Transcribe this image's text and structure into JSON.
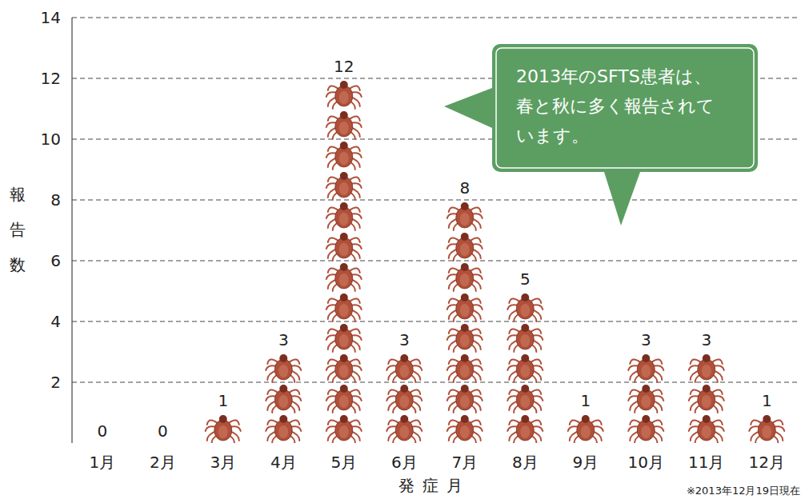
{
  "chart_data": {
    "type": "bar",
    "x_label": "発症月",
    "y_label": "報告数",
    "annotation": "2013年のSFTS患者は、春と秋に多く報告されています。",
    "footnote": "※2013年12月19日現在",
    "categories": [
      "1月",
      "2月",
      "3月",
      "4月",
      "5月",
      "6月",
      "7月",
      "8月",
      "9月",
      "10月",
      "11月",
      "12月"
    ],
    "values": [
      0,
      0,
      1,
      3,
      12,
      3,
      8,
      5,
      1,
      3,
      3,
      1
    ],
    "color": "#b0503a",
    "ylim": [
      0,
      14
    ],
    "yticks": [
      2,
      4,
      6,
      8,
      10,
      12,
      14
    ],
    "grid": true,
    "data_labels": true
  }
}
